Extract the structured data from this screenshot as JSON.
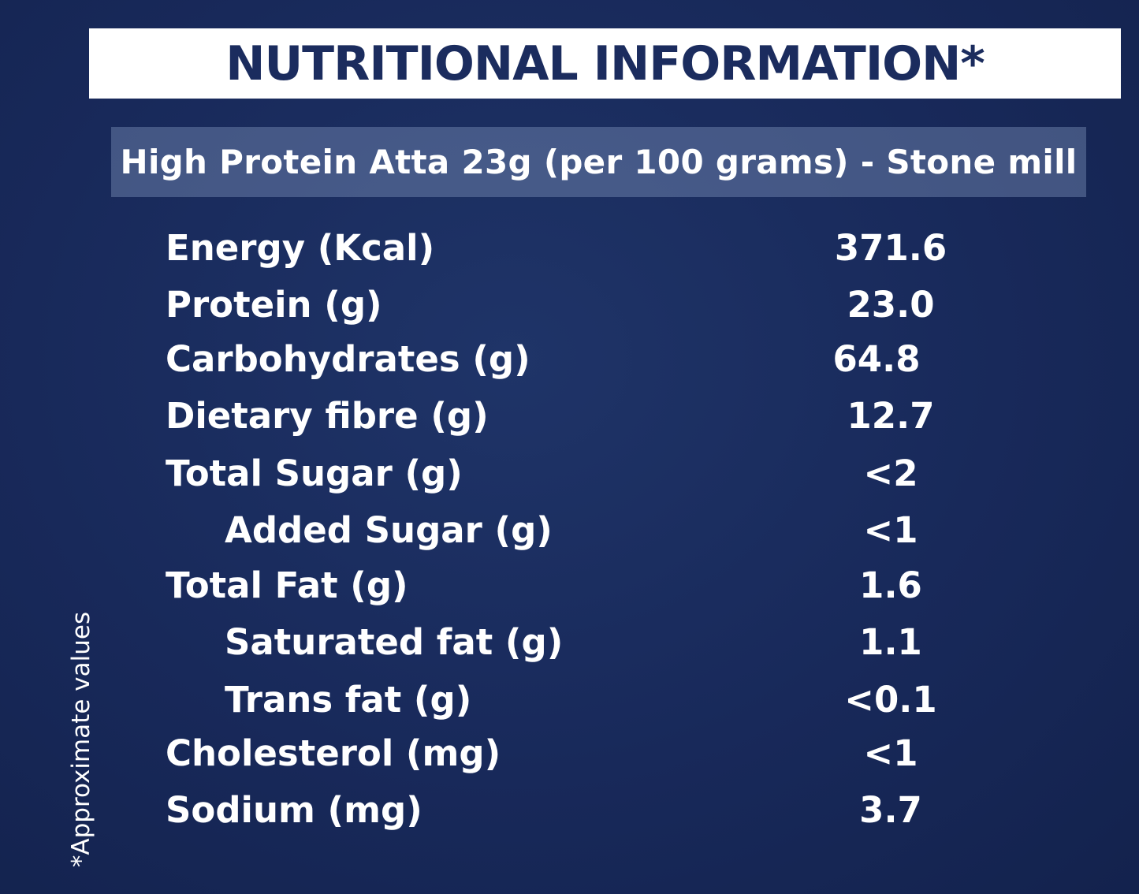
{
  "title": "NUTRITIONAL INFORMATION*",
  "subtitle": "High Protein Atta 23g (per 100 grams) - Stone mill",
  "nutrients": [
    {
      "label": "Energy (Kcal)",
      "value": "371.6"
    },
    {
      "label": "Protein (g)",
      "value": "23.0"
    },
    {
      "label": "Carbohydrates (g)",
      "value": "64.8"
    },
    {
      "label": "Dietary fibre (g)",
      "value": "12.7"
    },
    {
      "label": "Total Sugar (g)",
      "value": "<2"
    },
    {
      "label": "Added Sugar (g)",
      "value": "<1"
    },
    {
      "label": "Total Fat (g)",
      "value": "1.6"
    },
    {
      "label": "Saturated fat (g)",
      "value": "1.1"
    },
    {
      "label": "Trans fat (g)",
      "value": "<0.1"
    },
    {
      "label": "Cholesterol (mg)",
      "value": "<1"
    },
    {
      "label": "Sodium (mg)",
      "value": "3.7"
    }
  ],
  "footnote": "*Approximate values",
  "colors": {
    "background": "#18295a",
    "title_text": "#1b2c5e",
    "title_box": "#ffffff",
    "text": "#ffffff"
  }
}
